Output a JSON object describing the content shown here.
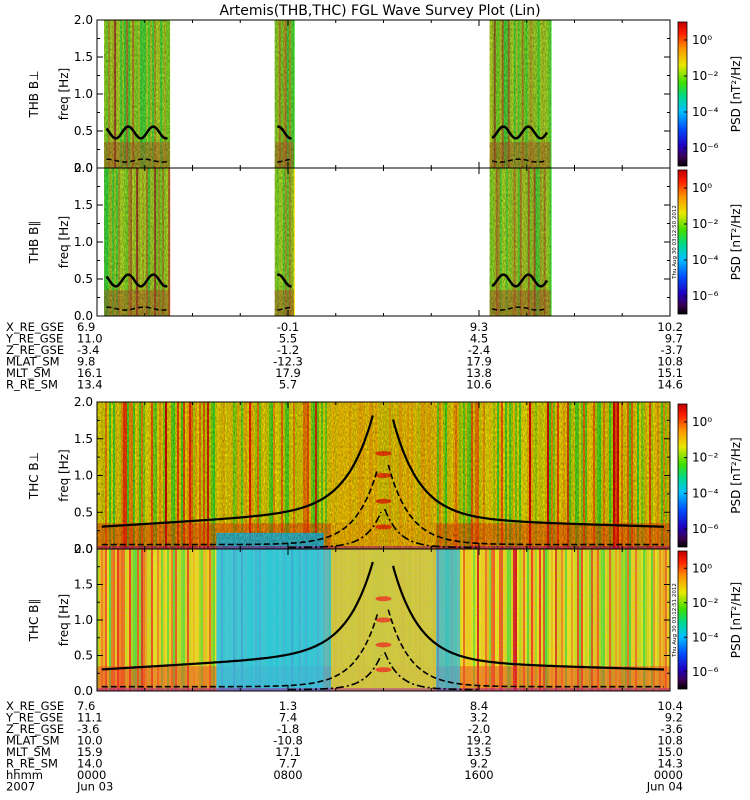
{
  "chart_data": {
    "type": "heatmap",
    "title": "Artemis(THB,THC) FGL Wave Survey Plot (Lin)",
    "colorbar": {
      "label": "PSD [nT²/Hz]",
      "ticks": [
        "10⁰",
        "10⁻²",
        "10⁻⁴",
        "10⁻⁶"
      ],
      "log_range": [
        -7,
        1
      ],
      "colormap": "rainbow"
    },
    "freq_ticks": [
      "0.0",
      "0.5",
      "1.0",
      "1.5",
      "2.0"
    ],
    "freq_range_hz": [
      0,
      2
    ],
    "panels": [
      {
        "id": "thb-perp",
        "ylabel": "THB B⊥",
        "ylabel2": "freq [Hz]",
        "data_intervals": [
          [
            0.3,
            3.05
          ],
          [
            7.45,
            8.25
          ],
          [
            16.45,
            19.0
          ]
        ]
      },
      {
        "id": "thb-par",
        "ylabel": "THB B∥",
        "ylabel2": "freq [Hz]",
        "data_intervals": [
          [
            0.3,
            3.05
          ],
          [
            7.45,
            8.25
          ],
          [
            16.45,
            19.0
          ]
        ]
      },
      {
        "id": "thc-perp",
        "ylabel": "THC B⊥",
        "ylabel2": "freq [Hz]",
        "data_intervals": [
          [
            0,
            24
          ]
        ]
      },
      {
        "id": "thc-par",
        "ylabel": "THC B∥",
        "ylabel2": "freq [Hz]",
        "data_intervals": [
          [
            0,
            24
          ]
        ]
      }
    ],
    "side_stamps": [
      "Thu Aug 30 03:12:50 2012",
      "Thu Aug 30 03:12:51 2012"
    ],
    "thb_ephemeris": {
      "rows": [
        {
          "label": "X_RE_GSE",
          "values": [
            "6.9",
            "-0.1",
            "9.3",
            "10.2"
          ]
        },
        {
          "label": "Y_RE_GSE",
          "values": [
            "11.0",
            "5.5",
            "4.5",
            "9.7"
          ]
        },
        {
          "label": "Z_RE_GSE",
          "values": [
            "-3.4",
            "-1.2",
            "-2.4",
            "-3.7"
          ]
        },
        {
          "label": "MLAT_SM",
          "values": [
            "9.8",
            "-12.3",
            "17.9",
            "10.8"
          ]
        },
        {
          "label": "MLT_SM",
          "values": [
            "16.1",
            "17.9",
            "13.8",
            "15.1"
          ]
        },
        {
          "label": "R_RE_SM",
          "values": [
            "13.4",
            "5.7",
            "10.6",
            "14.6"
          ]
        }
      ]
    },
    "thc_ephemeris": {
      "rows": [
        {
          "label": "X_RE_GSE",
          "values": [
            "7.6",
            "1.3",
            "8.4",
            "10.4"
          ]
        },
        {
          "label": "Y_RE_GSE",
          "values": [
            "11.1",
            "7.4",
            "3.2",
            "9.2"
          ]
        },
        {
          "label": "Z_RE_GSE",
          "values": [
            "-3.6",
            "-1.8",
            "-2.0",
            "-3.6"
          ]
        },
        {
          "label": "MLAT_SM",
          "values": [
            "10.0",
            "-10.8",
            "19.2",
            "10.8"
          ]
        },
        {
          "label": "MLT_SM",
          "values": [
            "15.9",
            "17.1",
            "13.5",
            "15.0"
          ]
        },
        {
          "label": "R_RE_SM",
          "values": [
            "14.0",
            "7.7",
            "9.2",
            "14.3"
          ]
        },
        {
          "label": "hhmm",
          "values": [
            "0000",
            "0800",
            "1600",
            "0000"
          ]
        }
      ],
      "date_row": {
        "label": "2007",
        "values": [
          "Jun 03",
          "",
          "",
          "Jun 04"
        ]
      }
    },
    "time_hours": [
      0,
      8,
      16,
      24
    ]
  }
}
